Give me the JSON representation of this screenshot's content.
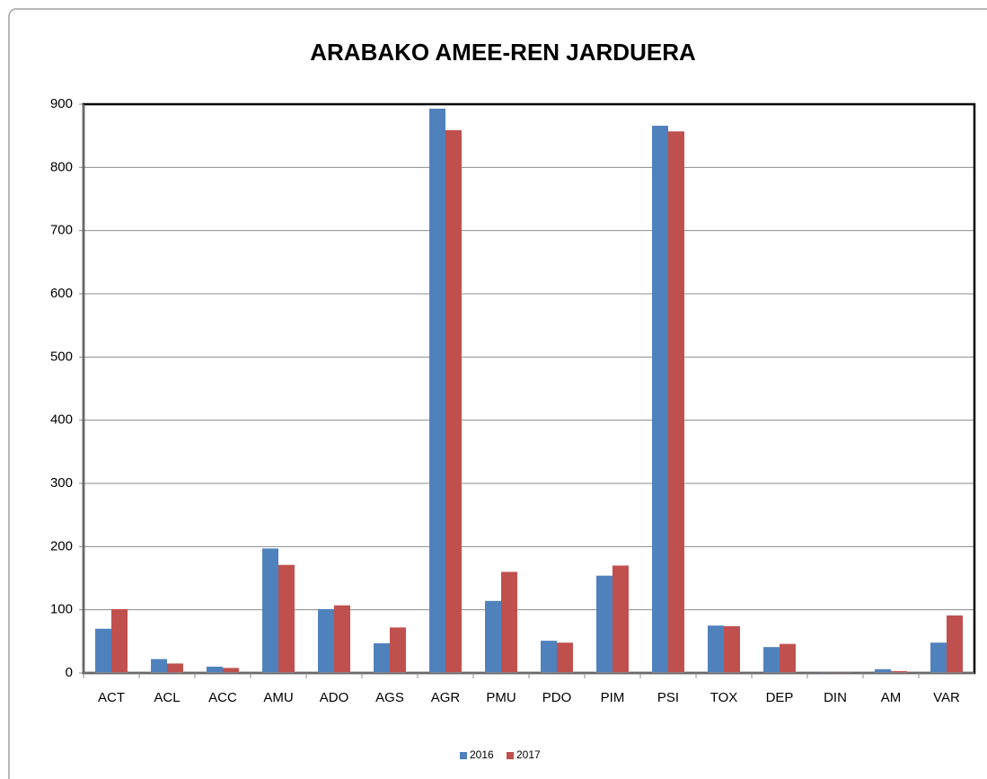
{
  "chart_data": {
    "type": "bar",
    "title": "ARABAKO AMEE-REN JARDUERA",
    "categories": [
      "ACT",
      "ACL",
      "ACC",
      "AMU",
      "ADO",
      "AGS",
      "AGR",
      "PMU",
      "PDO",
      "PIM",
      "PSI",
      "TOX",
      "DEP",
      "DIN",
      "AM",
      "VAR"
    ],
    "series": [
      {
        "name": "2016",
        "color": "#4f81bd",
        "values": [
          70,
          22,
          10,
          197,
          101,
          47,
          893,
          114,
          51,
          154,
          866,
          75,
          41,
          1,
          6,
          48
        ]
      },
      {
        "name": "2017",
        "color": "#c0504d",
        "values": [
          101,
          15,
          8,
          171,
          107,
          72,
          859,
          160,
          48,
          170,
          857,
          74,
          46,
          1,
          3,
          91
        ]
      }
    ],
    "ylim": [
      0,
      900
    ],
    "yticks": [
      0,
      100,
      200,
      300,
      400,
      500,
      600,
      700,
      800,
      900
    ],
    "grid": true,
    "legend": "bottom"
  }
}
